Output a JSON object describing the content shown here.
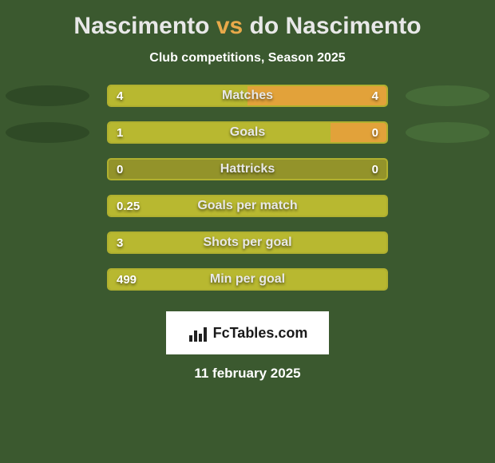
{
  "background_color": "#3b592f",
  "title": {
    "player1": "Nascimento",
    "vs": "vs",
    "player2": "do Nascimento",
    "player1_color": "#e8e8e8",
    "vs_color": "#e8a94a",
    "player2_color": "#e8e8e8",
    "fontsize": 30
  },
  "subtitle": "Club competitions, Season 2025",
  "shadow": {
    "left_color": "#2f4a26",
    "right_color": "#466b38"
  },
  "bar_style": {
    "track_color": "#93932a",
    "track_border": "#b0b02f",
    "left_fill": "#b8b830",
    "right_fill": "#e2a23a",
    "label_color": "#e8e8e8",
    "value_color": "#ffffff"
  },
  "stats": [
    {
      "label": "Matches",
      "left_value": "4",
      "right_value": "4",
      "left_pct": 50,
      "right_pct": 50,
      "show_shadows": true
    },
    {
      "label": "Goals",
      "left_value": "1",
      "right_value": "0",
      "left_pct": 80,
      "right_pct": 20,
      "show_shadows": true
    },
    {
      "label": "Hattricks",
      "left_value": "0",
      "right_value": "0",
      "left_pct": 0,
      "right_pct": 0,
      "show_shadows": false
    },
    {
      "label": "Goals per match",
      "left_value": "0.25",
      "right_value": "",
      "left_pct": 100,
      "right_pct": 0,
      "show_shadows": false
    },
    {
      "label": "Shots per goal",
      "left_value": "3",
      "right_value": "",
      "left_pct": 100,
      "right_pct": 0,
      "show_shadows": false
    },
    {
      "label": "Min per goal",
      "left_value": "499",
      "right_value": "",
      "left_pct": 100,
      "right_pct": 0,
      "show_shadows": false
    }
  ],
  "logo": {
    "text": "FcTables.com",
    "background": "#ffffff",
    "text_color": "#1a1a1a"
  },
  "date": "11 february 2025"
}
